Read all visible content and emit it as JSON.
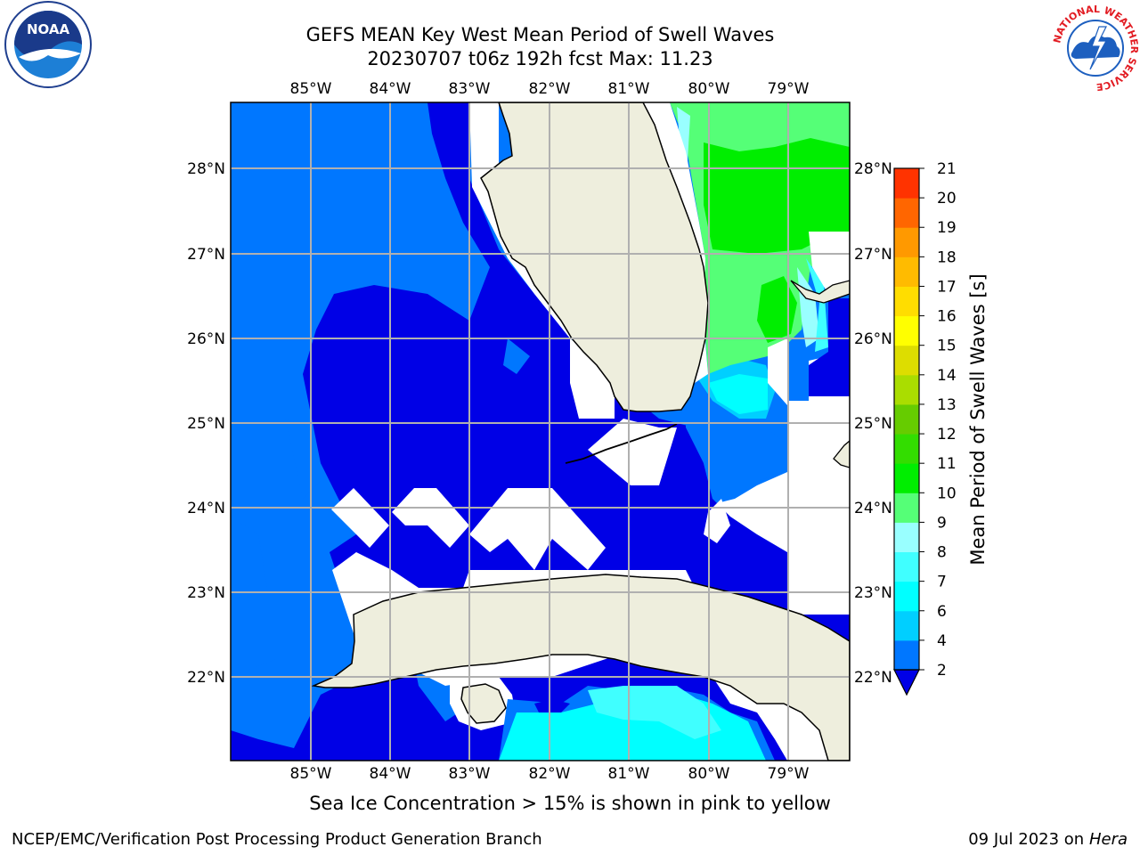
{
  "title": {
    "line1": "GEFS MEAN Key West Mean Period of Swell Waves",
    "line2": "20230707 t06z 192h fcst   Max: 11.23"
  },
  "logos": {
    "noaa_text": "NOAA",
    "nws_ring": "NATIONAL WEATHER SERVICE"
  },
  "map": {
    "lon_labels": [
      "85°W",
      "84°W",
      "83°W",
      "82°W",
      "81°W",
      "80°W",
      "79°W"
    ],
    "lat_labels": [
      "28°N",
      "27°N",
      "26°N",
      "25°N",
      "24°N",
      "23°N",
      "22°N"
    ],
    "colors": {
      "land": "#eeeedd",
      "grid": "#b0b0b0",
      "deep_blue": "#0000e6",
      "mid_blue": "#0077ff"
    }
  },
  "colorbar": {
    "label": "Mean Period of Swell Waves [s]",
    "ticks": [
      "2",
      "4",
      "6",
      "7",
      "8",
      "9",
      "10",
      "11",
      "12",
      "13",
      "14",
      "15",
      "16",
      "17",
      "18",
      "19",
      "20",
      "21"
    ],
    "colors": [
      "#0077ff",
      "#00cfff",
      "#00ffff",
      "#40ffff",
      "#99ffff",
      "#55ff77",
      "#00ee00",
      "#33dd00",
      "#66cc00",
      "#aadd00",
      "#dddd00",
      "#ffff00",
      "#ffdd00",
      "#ffbb00",
      "#ff9900",
      "#ff6600",
      "#ff3300",
      "#ff0000"
    ],
    "under_color": "#0000e6"
  },
  "footer": {
    "caption": "Sea Ice Concentration > 15% is shown in pink to yellow",
    "left": "NCEP/EMC/Verification Post Processing Product Generation Branch",
    "right_prefix": "09 Jul 2023 on",
    "right_machine": "Hera"
  }
}
